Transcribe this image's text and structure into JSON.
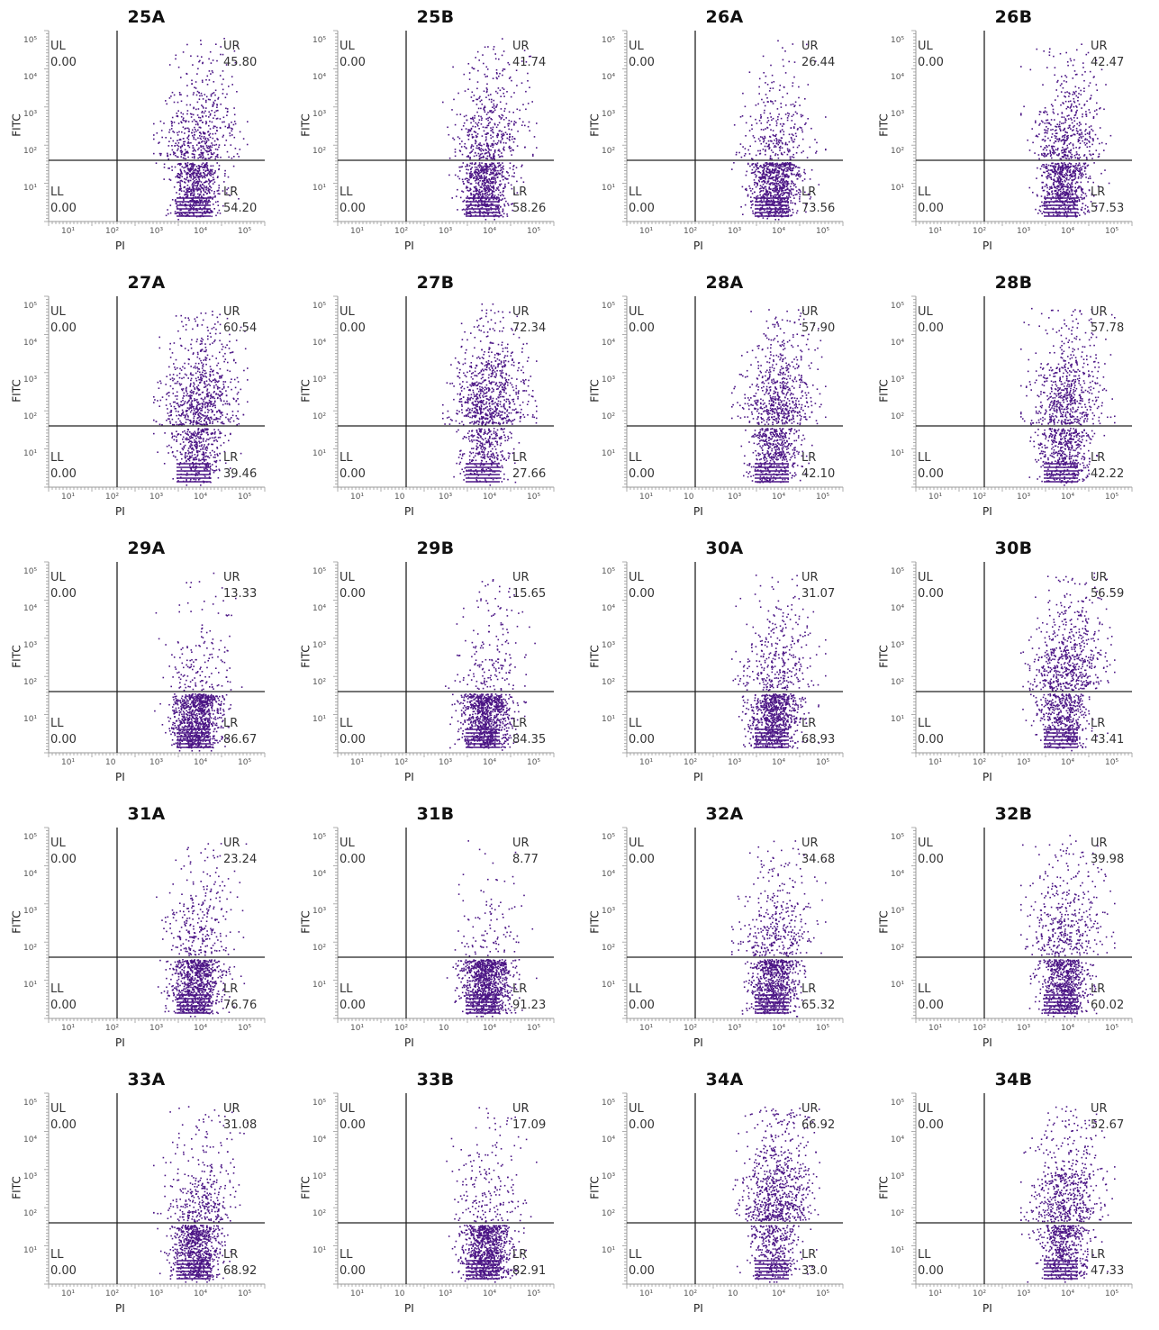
{
  "figure": {
    "accent_color": "#3d0a72",
    "point_color": "#4b1585"
  },
  "chart_data": [
    {
      "type": "scatter",
      "title": "25A",
      "xlabel": "PI",
      "ylabel": "FITC",
      "x_ticks": [
        "10¹",
        "10²",
        "10³",
        "10⁴",
        "10⁵"
      ],
      "y_ticks": [
        "10⁵",
        "10⁴",
        "10³",
        "10²",
        "10¹"
      ],
      "quadrants": {
        "UL": "0.00",
        "UR": "45.80",
        "LL": "0.00",
        "LR": "54.20"
      },
      "scale": "log"
    },
    {
      "type": "scatter",
      "title": "25B",
      "xlabel": "PI",
      "ylabel": "FITC",
      "x_ticks": [
        "10¹",
        "10²",
        "10³",
        "10⁴",
        "10⁵"
      ],
      "y_ticks": [
        "10⁵",
        "10⁴",
        "10³",
        "10²",
        "10¹"
      ],
      "quadrants": {
        "UL": "0.00",
        "UR": "41.74",
        "LL": "0.00",
        "LR": "58.26"
      },
      "scale": "log"
    },
    {
      "type": "scatter",
      "title": "26A",
      "xlabel": "PI",
      "ylabel": "FITC",
      "x_ticks": [
        "10¹",
        "10²",
        "10³",
        "10⁴",
        "10⁵"
      ],
      "y_ticks": [
        "10⁵",
        "10⁴",
        "10³",
        "10²",
        "10¹"
      ],
      "quadrants": {
        "UL": "0.00",
        "UR": "26.44",
        "LL": "0.00",
        "LR": "73.56"
      },
      "scale": "log"
    },
    {
      "type": "scatter",
      "title": "26B",
      "xlabel": "PI",
      "ylabel": "FITC",
      "x_ticks": [
        "10¹",
        "10²",
        "10³",
        "10⁴",
        "10⁵"
      ],
      "y_ticks": [
        "10⁵",
        "10⁴",
        "10³",
        "10²",
        "10¹"
      ],
      "quadrants": {
        "UL": "0.00",
        "UR": "42.47",
        "LL": "0.00",
        "LR": "57.53"
      },
      "scale": "log"
    },
    {
      "type": "scatter",
      "title": "27A",
      "xlabel": "PI",
      "ylabel": "FITC",
      "x_ticks": [
        "10¹",
        "10²",
        "10³",
        "10⁴",
        "10⁵"
      ],
      "y_ticks": [
        "10⁵",
        "10⁴",
        "10³",
        "10²",
        "10¹"
      ],
      "quadrants": {
        "UL": "0.00",
        "UR": "60.54",
        "LL": "0.00",
        "LR": "39.46"
      },
      "scale": "log"
    },
    {
      "type": "scatter",
      "title": "27B",
      "xlabel": "PI",
      "ylabel": "FITC",
      "x_ticks": [
        "10¹",
        "10",
        "10³",
        "10⁴",
        "10⁵"
      ],
      "y_ticks": [
        "10⁵",
        "10⁴",
        "10³",
        "10²",
        "10¹"
      ],
      "quadrants": {
        "UL": "0.00",
        "UR": "72.34",
        "LL": "0.00",
        "LR": "27.66"
      },
      "scale": "log"
    },
    {
      "type": "scatter",
      "title": "28A",
      "xlabel": "PI",
      "ylabel": "FITC",
      "x_ticks": [
        "10¹",
        "10",
        "10³",
        "10⁴",
        "10⁵"
      ],
      "y_ticks": [
        "10⁵",
        "10⁴",
        "10³",
        "10²",
        "10¹"
      ],
      "quadrants": {
        "UL": "0.00",
        "UR": "57.90",
        "LL": "0.00",
        "LR": "42.10"
      },
      "scale": "log"
    },
    {
      "type": "scatter",
      "title": "28B",
      "xlabel": "PI",
      "ylabel": "FITC",
      "x_ticks": [
        "10¹",
        "10²",
        "10³",
        "10⁴",
        "10⁵"
      ],
      "y_ticks": [
        "10⁵",
        "10⁴",
        "10³",
        "10²",
        "10¹"
      ],
      "quadrants": {
        "UL": "0.00",
        "UR": "57.78",
        "LL": "0.00",
        "LR": "42.22"
      },
      "scale": "log"
    },
    {
      "type": "scatter",
      "title": "29A",
      "xlabel": "PI",
      "ylabel": "FITC",
      "x_ticks": [
        "10¹",
        "10",
        "10³",
        "10⁴",
        "10⁵"
      ],
      "y_ticks": [
        "10⁵",
        "10⁴",
        "10³",
        "10²",
        "10¹"
      ],
      "quadrants": {
        "UL": "0.00",
        "UR": "13.33",
        "LL": "0.00",
        "LR": "86.67"
      },
      "scale": "log"
    },
    {
      "type": "scatter",
      "title": "29B",
      "xlabel": "PI",
      "ylabel": "FITC",
      "x_ticks": [
        "10¹",
        "10²",
        "10³",
        "10⁴",
        "10⁵"
      ],
      "y_ticks": [
        "10⁵",
        "10⁴",
        "10³",
        "10²",
        "10¹"
      ],
      "quadrants": {
        "UL": "0.00",
        "UR": "15.65",
        "LL": "0.00",
        "LR": "84.35"
      },
      "scale": "log"
    },
    {
      "type": "scatter",
      "title": "30A",
      "xlabel": "PI",
      "ylabel": "FITC",
      "x_ticks": [
        "10¹",
        "10²",
        "10³",
        "10⁴",
        "10⁵"
      ],
      "y_ticks": [
        "10⁵",
        "10⁴",
        "10³",
        "10²",
        "10¹"
      ],
      "quadrants": {
        "UL": "0.00",
        "UR": "31.07",
        "LL": "0.00",
        "LR": "68.93"
      },
      "scale": "log"
    },
    {
      "type": "scatter",
      "title": "30B",
      "xlabel": "PI",
      "ylabel": "FITC",
      "x_ticks": [
        "10¹",
        "10²",
        "10³",
        "10⁴",
        "10⁵"
      ],
      "y_ticks": [
        "10⁵",
        "10⁴",
        "10³",
        "10²",
        "10¹"
      ],
      "quadrants": {
        "UL": "0.00",
        "UR": "56.59",
        "LL": "0.00",
        "LR": "43.41"
      },
      "scale": "log"
    },
    {
      "type": "scatter",
      "title": "31A",
      "xlabel": "PI",
      "ylabel": "FITC",
      "x_ticks": [
        "10¹",
        "10²",
        "10³",
        "10⁴",
        "10⁵"
      ],
      "y_ticks": [
        "10⁵",
        "10⁴",
        "10³",
        "10²",
        "10¹"
      ],
      "quadrants": {
        "UL": "0.00",
        "UR": "23.24",
        "LL": "0.00",
        "LR": "76.76"
      },
      "scale": "log"
    },
    {
      "type": "scatter",
      "title": "31B",
      "xlabel": "PI",
      "ylabel": "FITC",
      "x_ticks": [
        "10¹",
        "10²",
        "10",
        "10⁴",
        "10⁵"
      ],
      "y_ticks": [
        "10⁵",
        "10⁴",
        "10³",
        "10²",
        "10¹"
      ],
      "quadrants": {
        "UL": "0.00",
        "UR": "8.77",
        "LL": "0.00",
        "LR": "91.23"
      },
      "scale": "log"
    },
    {
      "type": "scatter",
      "title": "32A",
      "xlabel": "PI",
      "ylabel": "FITC",
      "x_ticks": [
        "10¹",
        "10²",
        "10³",
        "10⁴",
        "10⁵"
      ],
      "y_ticks": [
        "10⁵",
        "10⁴",
        "10³",
        "10²",
        "10¹"
      ],
      "quadrants": {
        "UL": "0.00",
        "UR": "34.68",
        "LL": "0.00",
        "LR": "65.32"
      },
      "scale": "log"
    },
    {
      "type": "scatter",
      "title": "32B",
      "xlabel": "PI",
      "ylabel": "FITC",
      "x_ticks": [
        "10¹",
        "10²",
        "10³",
        "10⁴",
        "10⁵"
      ],
      "y_ticks": [
        "10⁵",
        "10⁴",
        "10³",
        "10²",
        "10¹"
      ],
      "quadrants": {
        "UL": "0.00",
        "UR": "39.98",
        "LL": "0.00",
        "LR": "60.02"
      },
      "scale": "log"
    },
    {
      "type": "scatter",
      "title": "33A",
      "xlabel": "PI",
      "ylabel": "FITC",
      "x_ticks": [
        "10¹",
        "10²",
        "10³",
        "10⁴",
        "10⁵"
      ],
      "y_ticks": [
        "10⁵",
        "10⁴",
        "10³",
        "10²",
        "10¹"
      ],
      "quadrants": {
        "UL": "0.00",
        "UR": "31.08",
        "LL": "0.00",
        "LR": "68.92"
      },
      "scale": "log"
    },
    {
      "type": "scatter",
      "title": "33B",
      "xlabel": "PI",
      "ylabel": "FITC",
      "x_ticks": [
        "10¹",
        "10",
        "10³",
        "10⁴",
        "10⁵"
      ],
      "y_ticks": [
        "10⁵",
        "10⁴",
        "10³",
        "10²",
        "10¹"
      ],
      "quadrants": {
        "UL": "0.00",
        "UR": "17.09",
        "LL": "0.00",
        "LR": "82.91"
      },
      "scale": "log"
    },
    {
      "type": "scatter",
      "title": "34A",
      "xlabel": "PI",
      "ylabel": "FITC",
      "x_ticks": [
        "10¹",
        "10²",
        "10",
        "10⁴",
        "10⁵"
      ],
      "y_ticks": [
        "10⁵",
        "10⁴",
        "10³",
        "10²",
        "10¹"
      ],
      "quadrants": {
        "UL": "0.00",
        "UR": "66.92",
        "LL": "0.00",
        "LR": "33.0"
      },
      "scale": "log"
    },
    {
      "type": "scatter",
      "title": "34B",
      "xlabel": "PI",
      "ylabel": "FITC",
      "x_ticks": [
        "10¹",
        "10²",
        "10³",
        "10⁴",
        "10⁵"
      ],
      "y_ticks": [
        "10⁵",
        "10⁴",
        "10³",
        "10²",
        "10¹"
      ],
      "quadrants": {
        "UL": "0.00",
        "UR": "52.67",
        "LL": "0.00",
        "LR": "47.33"
      },
      "scale": "log"
    }
  ]
}
